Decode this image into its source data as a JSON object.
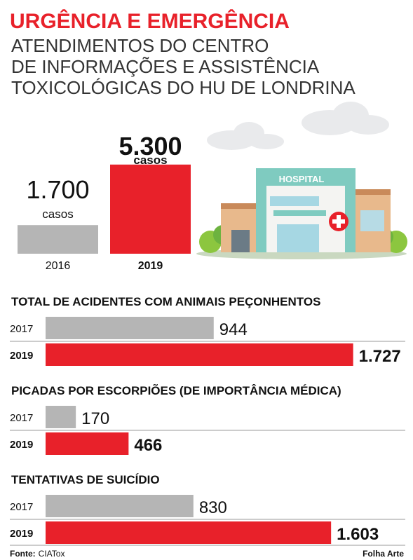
{
  "header": {
    "title": "URGÊNCIA E EMERGÊNCIA",
    "subtitle": [
      "ATENDIMENTOS DO CENTRO",
      "DE INFORMAÇÕES E ASSISTÊNCIA",
      "TOXICOLÓGICAS DO HU DE LONDRINA"
    ]
  },
  "illustration": {
    "sign": "HOSPITAL"
  },
  "chart_data": [
    {
      "type": "bar",
      "categories": [
        "2016",
        "2019"
      ],
      "values": [
        1700,
        5300
      ],
      "value_labels": [
        "1.700",
        "5.300"
      ],
      "unit": "casos",
      "colors": [
        "#b5b5b5",
        "#e8212a"
      ]
    },
    {
      "type": "hbar",
      "title": "TOTAL DE ACIDENTES COM ANIMAIS PEÇONHENTOS",
      "categories": [
        "2017",
        "2019"
      ],
      "values": [
        944,
        1727
      ],
      "value_labels": [
        "944",
        "1.727"
      ],
      "colors": [
        "#b5b5b5",
        "#e8212a"
      ]
    },
    {
      "type": "hbar",
      "title": "PICADAS POR ESCORPIÕES (DE IMPORTÂNCIA MÉDICA)",
      "categories": [
        "2017",
        "2019"
      ],
      "values": [
        170,
        466
      ],
      "value_labels": [
        "170",
        "466"
      ],
      "colors": [
        "#b5b5b5",
        "#e8212a"
      ]
    },
    {
      "type": "hbar",
      "title": "TENTATIVAS DE SUICÍDIO",
      "categories": [
        "2017",
        "2019"
      ],
      "values": [
        830,
        1603
      ],
      "value_labels": [
        "830",
        "1.603"
      ],
      "colors": [
        "#b5b5b5",
        "#e8212a"
      ]
    }
  ],
  "footer": {
    "source_label": "Fonte:",
    "source": "CIATox",
    "credit": "Folha Arte"
  }
}
